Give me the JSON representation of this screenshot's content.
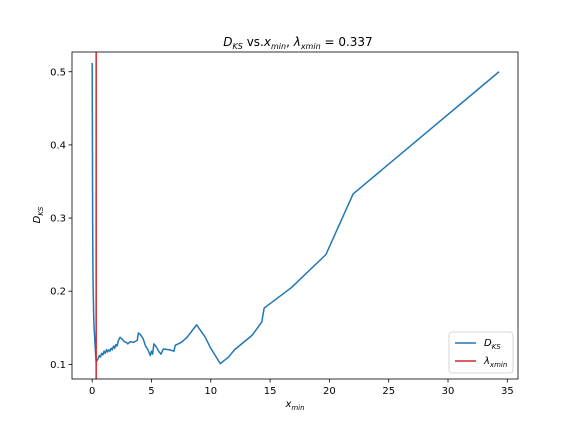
{
  "chart_data": {
    "type": "line",
    "title_parts": {
      "d_main": "D",
      "d_sub": "KS",
      "mid": " vs.",
      "x_main": "x",
      "x_sub": "min",
      "comma": ",  ",
      "lambda": "λ",
      "lambda_sub": "xmin",
      "value": " = 0.337"
    },
    "xlabel": {
      "main": "x",
      "sub": "min"
    },
    "ylabel": {
      "main": "D",
      "sub": "KS"
    },
    "xlim": [
      -1.7,
      35.9
    ],
    "ylim": [
      0.08,
      0.527
    ],
    "xticks": [
      0,
      5,
      10,
      15,
      20,
      25,
      30,
      35
    ],
    "yticks": [
      0.1,
      0.2,
      0.3,
      0.4,
      0.5
    ],
    "ytick_labels": [
      "0.1",
      "0.2",
      "0.3",
      "0.4",
      "0.5"
    ],
    "grid": false,
    "legend_position": "lower-right",
    "series": [
      {
        "name": "D_KS",
        "legend_main": "D",
        "legend_sub": "KS",
        "color": "#1f77b4",
        "points": [
          [
            0.0,
            0.512
          ],
          [
            0.02,
            0.42
          ],
          [
            0.04,
            0.3
          ],
          [
            0.06,
            0.24
          ],
          [
            0.08,
            0.21
          ],
          [
            0.1,
            0.19
          ],
          [
            0.13,
            0.165
          ],
          [
            0.16,
            0.15
          ],
          [
            0.2,
            0.14
          ],
          [
            0.25,
            0.125
          ],
          [
            0.3,
            0.112
          ],
          [
            0.337,
            0.103
          ],
          [
            0.4,
            0.105
          ],
          [
            0.5,
            0.108
          ],
          [
            0.6,
            0.112
          ],
          [
            0.7,
            0.11
          ],
          [
            0.8,
            0.115
          ],
          [
            0.9,
            0.113
          ],
          [
            1.0,
            0.118
          ],
          [
            1.1,
            0.115
          ],
          [
            1.2,
            0.12
          ],
          [
            1.3,
            0.117
          ],
          [
            1.4,
            0.12
          ],
          [
            1.5,
            0.118
          ],
          [
            1.6,
            0.122
          ],
          [
            1.7,
            0.12
          ],
          [
            1.8,
            0.125
          ],
          [
            1.9,
            0.122
          ],
          [
            2.0,
            0.127
          ],
          [
            2.1,
            0.125
          ],
          [
            2.2,
            0.132
          ],
          [
            2.35,
            0.137
          ],
          [
            2.5,
            0.135
          ],
          [
            2.7,
            0.131
          ],
          [
            2.9,
            0.13
          ],
          [
            3.0,
            0.128
          ],
          [
            3.2,
            0.131
          ],
          [
            3.5,
            0.13
          ],
          [
            3.8,
            0.133
          ],
          [
            3.9,
            0.143
          ],
          [
            4.1,
            0.14
          ],
          [
            4.3,
            0.135
          ],
          [
            4.5,
            0.125
          ],
          [
            4.7,
            0.12
          ],
          [
            4.9,
            0.112
          ],
          [
            5.0,
            0.118
          ],
          [
            5.1,
            0.114
          ],
          [
            5.2,
            0.128
          ],
          [
            5.4,
            0.124
          ],
          [
            5.6,
            0.118
          ],
          [
            5.8,
            0.114
          ],
          [
            6.0,
            0.121
          ],
          [
            6.5,
            0.12
          ],
          [
            6.9,
            0.118
          ],
          [
            7.0,
            0.126
          ],
          [
            7.5,
            0.13
          ],
          [
            8.0,
            0.137
          ],
          [
            8.8,
            0.154
          ],
          [
            9.5,
            0.138
          ],
          [
            10.0,
            0.122
          ],
          [
            10.8,
            0.101
          ],
          [
            11.5,
            0.11
          ],
          [
            12.0,
            0.12
          ],
          [
            13.5,
            0.14
          ],
          [
            14.3,
            0.158
          ],
          [
            14.5,
            0.177
          ],
          [
            16.8,
            0.205
          ],
          [
            19.7,
            0.25
          ],
          [
            22.0,
            0.333
          ],
          [
            34.3,
            0.5
          ]
        ]
      },
      {
        "name": "λ_xmin",
        "legend_main": "λ",
        "legend_sub": "xmin",
        "color": "#d62728",
        "vline_x": 0.337
      }
    ]
  }
}
